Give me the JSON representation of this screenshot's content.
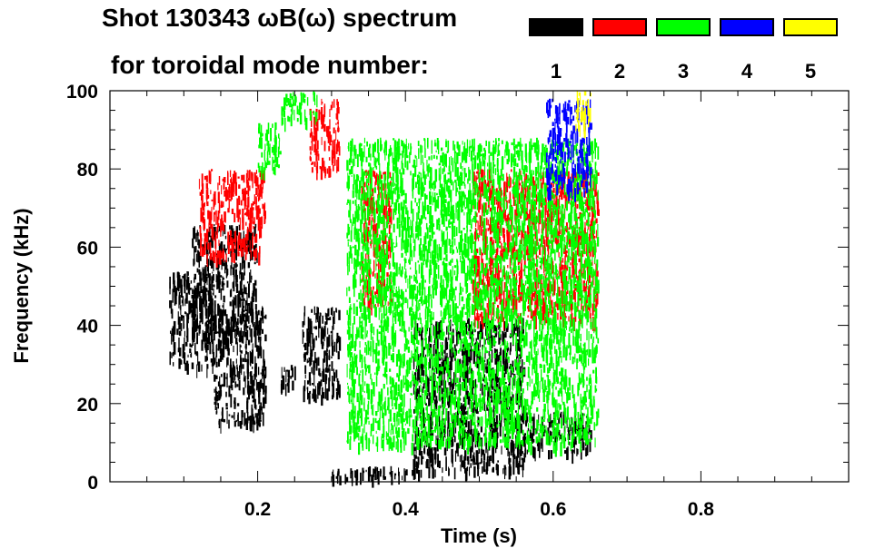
{
  "title_line1": "Shot 130343 ωB(ω) spectrum",
  "title_line2": "for toroidal mode number:",
  "chart_data": {
    "type": "heatmap",
    "title": "Shot 130343 ωB(ω) spectrum for toroidal mode number",
    "xlabel": "Time (s)",
    "ylabel": "Frequency (kHz)",
    "xlim": [
      0.0,
      1.0
    ],
    "ylim": [
      0,
      100
    ],
    "x_ticks": [
      0.2,
      0.4,
      0.6,
      0.8
    ],
    "x_tick_labels": [
      "0.2",
      "0.4",
      "0.6",
      "0.8"
    ],
    "y_ticks": [
      0,
      20,
      40,
      60,
      80,
      100
    ],
    "y_tick_labels": [
      "0",
      "20",
      "40",
      "60",
      "80",
      "100"
    ],
    "legend": [
      {
        "mode": "1",
        "color": "#000000"
      },
      {
        "mode": "2",
        "color": "#ff0000"
      },
      {
        "mode": "3",
        "color": "#00ff00"
      },
      {
        "mode": "4",
        "color": "#0000ff"
      },
      {
        "mode": "5",
        "color": "#ffff00"
      }
    ],
    "regions": [
      {
        "mode": 1,
        "t": [
          0.08,
          0.14
        ],
        "f": [
          30,
          54
        ]
      },
      {
        "mode": 1,
        "t": [
          0.11,
          0.2
        ],
        "f": [
          38,
          66
        ]
      },
      {
        "mode": 1,
        "t": [
          0.14,
          0.21
        ],
        "f": [
          15,
          45
        ]
      },
      {
        "mode": 1,
        "t": [
          0.23,
          0.25
        ],
        "f": [
          25,
          30
        ]
      },
      {
        "mode": 1,
        "t": [
          0.26,
          0.31
        ],
        "f": [
          22,
          45
        ]
      },
      {
        "mode": 1,
        "t": [
          0.3,
          0.41
        ],
        "f": [
          1,
          4
        ]
      },
      {
        "mode": 1,
        "t": [
          0.41,
          0.56
        ],
        "f": [
          3,
          42
        ]
      },
      {
        "mode": 1,
        "t": [
          0.56,
          0.65
        ],
        "f": [
          8,
          18
        ]
      },
      {
        "mode": 2,
        "t": [
          0.12,
          0.21
        ],
        "f": [
          58,
          80
        ]
      },
      {
        "mode": 2,
        "t": [
          0.27,
          0.31
        ],
        "f": [
          80,
          98
        ]
      },
      {
        "mode": 2,
        "t": [
          0.34,
          0.38
        ],
        "f": [
          45,
          80
        ]
      },
      {
        "mode": 2,
        "t": [
          0.49,
          0.66
        ],
        "f": [
          42,
          80
        ]
      },
      {
        "mode": 3,
        "t": [
          0.2,
          0.23
        ],
        "f": [
          80,
          92
        ]
      },
      {
        "mode": 3,
        "t": [
          0.23,
          0.28
        ],
        "f": [
          93,
          100
        ]
      },
      {
        "mode": 3,
        "t": [
          0.32,
          0.66
        ],
        "f": [
          10,
          88
        ]
      },
      {
        "mode": 4,
        "t": [
          0.59,
          0.65
        ],
        "f": [
          75,
          98
        ]
      },
      {
        "mode": 5,
        "t": [
          0.63,
          0.65
        ],
        "f": [
          90,
          100
        ]
      }
    ]
  }
}
